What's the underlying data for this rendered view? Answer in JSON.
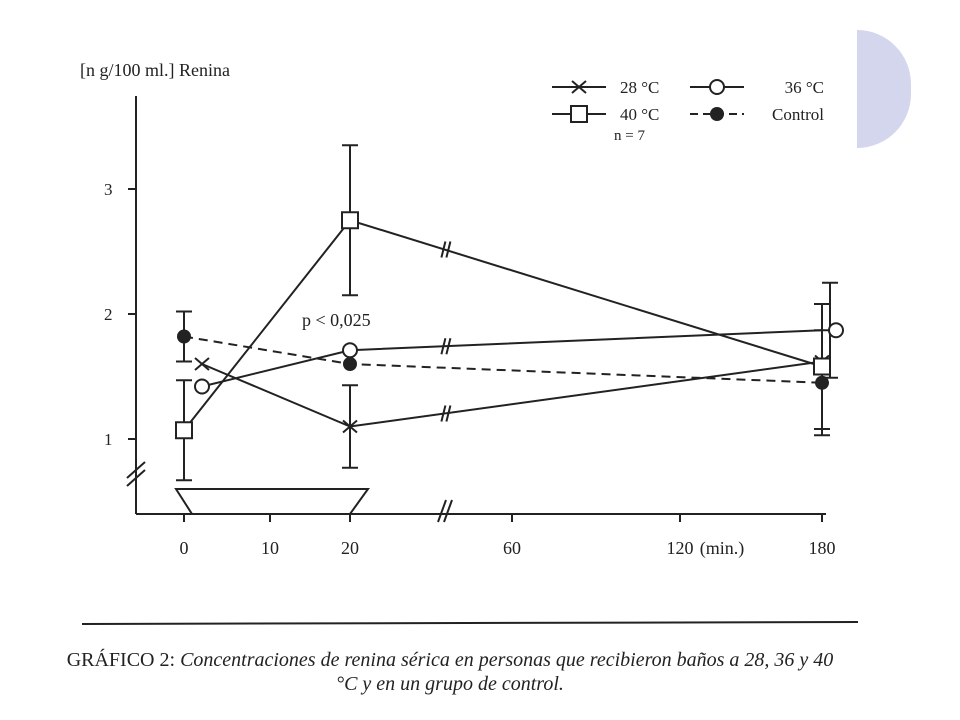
{
  "chart_data": {
    "type": "line",
    "ylabel": "[n g/100 ml.] Renina",
    "xlabel_unit": "(min.)",
    "x_ticks": [
      "0",
      "10",
      "20",
      "60",
      "120",
      "180"
    ],
    "y_ticks": [
      "1",
      "2",
      "3"
    ],
    "ylim": [
      0.5,
      3.6
    ],
    "grid": false,
    "legend_position": "top-right",
    "n_label": "n = 7",
    "annotation": "p < 0,025",
    "series": [
      {
        "name": "28 °C",
        "marker": "cross",
        "dash": "solid",
        "x": [
          "1",
          "20",
          "180"
        ],
        "y": [
          1.6,
          1.1,
          1.62
        ],
        "err": [
          null,
          0.33,
          null
        ]
      },
      {
        "name": "36 °C",
        "marker": "open-circle",
        "dash": "solid",
        "x": [
          "1",
          "20",
          "180"
        ],
        "y": [
          1.42,
          1.71,
          1.87
        ],
        "err": [
          null,
          null,
          0.38
        ]
      },
      {
        "name": "40 °C",
        "marker": "open-square",
        "dash": "solid",
        "x": [
          "0",
          "20",
          "180"
        ],
        "y": [
          1.07,
          2.75,
          1.58
        ],
        "err": [
          0.4,
          0.6,
          0.5
        ]
      },
      {
        "name": "Control",
        "marker": "filled-circle",
        "dash": "dashed",
        "x": [
          "0",
          "20",
          "180"
        ],
        "y": [
          1.82,
          1.6,
          1.45
        ],
        "err": [
          0.2,
          null,
          0.42
        ]
      }
    ]
  },
  "caption": {
    "lead": "GRÁFICO 2:",
    "body": "Concentraciones de renina sérica en personas que recibieron baños a 28, 36 y 40 °C y en un grupo de control."
  },
  "colors": {
    "ink": "#222222",
    "accent_shape": "#d4d6ee"
  }
}
